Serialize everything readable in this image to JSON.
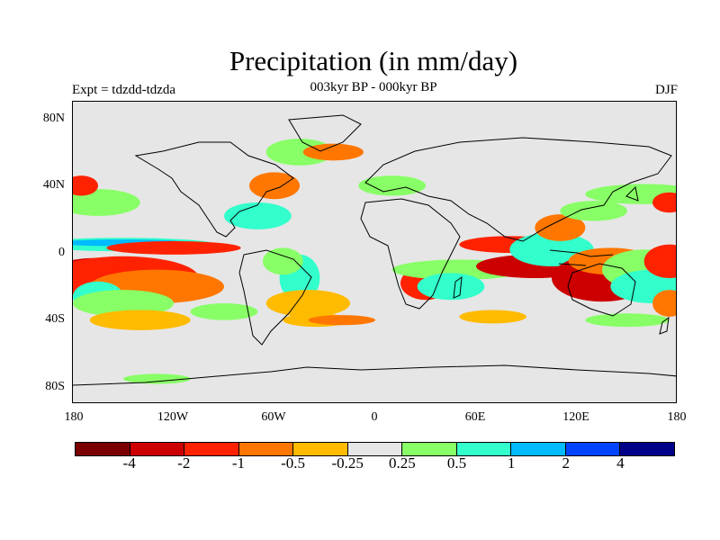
{
  "title": "Precipitation (in mm/day)",
  "subtitle": "003kyr BP - 000kyr BP",
  "experiment": "Expt = tdzdd-tdzda",
  "season": "DJF",
  "lat_labels": [
    "80N",
    "40N",
    "0",
    "40S",
    "80S"
  ],
  "lon_labels": [
    "180",
    "120W",
    "60W",
    "0",
    "60E",
    "120E",
    "180"
  ],
  "colorbar": {
    "colors": [
      "#7a0000",
      "#cc0000",
      "#ff2200",
      "#ff7700",
      "#ffbb00",
      "#e6e6e6",
      "#88ff66",
      "#33ffcc",
      "#00bbff",
      "#0044ff",
      "#000088"
    ],
    "labels": [
      "-4",
      "-2",
      "-1",
      "-0.5",
      "-0.25",
      "0.25",
      "0.5",
      "1",
      "2",
      "4"
    ]
  },
  "anomaly_patches": [
    {
      "lon": -160,
      "lat": -13,
      "w": 22,
      "h": 5,
      "cls": "-4"
    },
    {
      "lon": -165,
      "lat": -12,
      "w": 30,
      "h": 9,
      "cls": "-2"
    },
    {
      "lon": -150,
      "lat": -15,
      "w": 45,
      "h": 13,
      "cls": "-1"
    },
    {
      "lon": -130,
      "lat": -20,
      "w": 40,
      "h": 10,
      "cls": "-0.5"
    },
    {
      "lon": -150,
      "lat": 5,
      "w": 55,
      "h": 4,
      "cls": "1"
    },
    {
      "lon": -150,
      "lat": 6,
      "w": 40,
      "h": 2,
      "cls": "2"
    },
    {
      "lon": -120,
      "lat": 3,
      "w": 40,
      "h": 4,
      "cls": "-1"
    },
    {
      "lon": -165,
      "lat": -26,
      "w": 15,
      "h": 9,
      "cls": "1"
    },
    {
      "lon": -150,
      "lat": -30,
      "w": 30,
      "h": 8,
      "cls": "0.5"
    },
    {
      "lon": -165,
      "lat": 30,
      "w": 25,
      "h": 8,
      "cls": "0.5"
    },
    {
      "lon": -175,
      "lat": 40,
      "w": 10,
      "h": 6,
      "cls": "-1"
    },
    {
      "lon": -140,
      "lat": -40,
      "w": 30,
      "h": 6,
      "cls": "-0.25"
    },
    {
      "lon": -45,
      "lat": -15,
      "w": 12,
      "h": 14,
      "cls": "1"
    },
    {
      "lon": -55,
      "lat": -5,
      "w": 12,
      "h": 8,
      "cls": "0.5"
    },
    {
      "lon": -40,
      "lat": -30,
      "w": 25,
      "h": 8,
      "cls": "-0.25"
    },
    {
      "lon": -70,
      "lat": 22,
      "w": 20,
      "h": 8,
      "cls": "1"
    },
    {
      "lon": -60,
      "lat": 40,
      "w": 15,
      "h": 8,
      "cls": "-0.5"
    },
    {
      "lon": -45,
      "lat": 60,
      "w": 20,
      "h": 8,
      "cls": "0.5"
    },
    {
      "lon": -25,
      "lat": 60,
      "w": 18,
      "h": 5,
      "cls": "-0.5"
    },
    {
      "lon": 10,
      "lat": 40,
      "w": 20,
      "h": 6,
      "cls": "0.5"
    },
    {
      "lon": 30,
      "lat": -18,
      "w": 15,
      "h": 10,
      "cls": "-1"
    },
    {
      "lon": 50,
      "lat": -10,
      "w": 40,
      "h": 6,
      "cls": "0.5"
    },
    {
      "lon": 45,
      "lat": -20,
      "w": 20,
      "h": 8,
      "cls": "1"
    },
    {
      "lon": 80,
      "lat": 5,
      "w": 30,
      "h": 5,
      "cls": "-1"
    },
    {
      "lon": 95,
      "lat": -8,
      "w": 35,
      "h": 7,
      "cls": "-2"
    },
    {
      "lon": 105,
      "lat": 2,
      "w": 25,
      "h": 10,
      "cls": "1"
    },
    {
      "lon": 110,
      "lat": 15,
      "w": 15,
      "h": 8,
      "cls": "-0.5"
    },
    {
      "lon": 135,
      "lat": -15,
      "w": 30,
      "h": 14,
      "cls": "-2"
    },
    {
      "lon": 140,
      "lat": -5,
      "w": 25,
      "h": 8,
      "cls": "-0.5"
    },
    {
      "lon": 160,
      "lat": -10,
      "w": 25,
      "h": 12,
      "cls": "0.5"
    },
    {
      "lon": 165,
      "lat": -20,
      "w": 25,
      "h": 10,
      "cls": "1"
    },
    {
      "lon": 175,
      "lat": -5,
      "w": 15,
      "h": 10,
      "cls": "-1"
    },
    {
      "lon": 130,
      "lat": 25,
      "w": 20,
      "h": 6,
      "cls": "0.5"
    },
    {
      "lon": 160,
      "lat": 35,
      "w": 35,
      "h": 6,
      "cls": "0.5"
    },
    {
      "lon": 175,
      "lat": 30,
      "w": 10,
      "h": 6,
      "cls": "-1"
    },
    {
      "lon": -35,
      "lat": -40,
      "w": 20,
      "h": 4,
      "cls": "-0.25"
    },
    {
      "lon": -20,
      "lat": -40,
      "w": 20,
      "h": 3,
      "cls": "-0.5"
    },
    {
      "lon": 70,
      "lat": -38,
      "w": 20,
      "h": 4,
      "cls": "-0.25"
    },
    {
      "lon": 150,
      "lat": -40,
      "w": 25,
      "h": 4,
      "cls": "0.5"
    },
    {
      "lon": 175,
      "lat": -30,
      "w": 10,
      "h": 8,
      "cls": "-0.5"
    },
    {
      "lon": -90,
      "lat": -35,
      "w": 20,
      "h": 5,
      "cls": "0.5"
    },
    {
      "lon": -130,
      "lat": -75,
      "w": 20,
      "h": 3,
      "cls": "0.5"
    }
  ]
}
